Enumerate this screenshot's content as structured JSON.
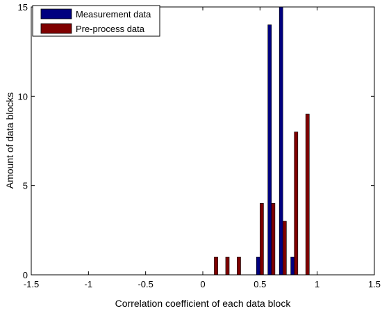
{
  "chart_data": {
    "type": "bar",
    "title": "",
    "xlabel": "Correlation coefficient of each data block",
    "ylabel": "Amount of data blocks",
    "xlim": [
      -1.5,
      1.5
    ],
    "ylim": [
      0,
      15
    ],
    "x_ticks": [
      -1.5,
      -1,
      -0.5,
      0,
      0.5,
      1,
      1.5
    ],
    "x_tick_labels": [
      "-1.5",
      "-1",
      "-0.5",
      "0",
      "0.5",
      "1",
      "1.5"
    ],
    "y_ticks": [
      0,
      5,
      10,
      15
    ],
    "y_tick_labels": [
      "0",
      "5",
      "10",
      "15"
    ],
    "grid": false,
    "legend_position": "top-left",
    "bin_centers": [
      0.1,
      0.2,
      0.3,
      0.4,
      0.5,
      0.6,
      0.7,
      0.8,
      0.9
    ],
    "series": [
      {
        "name": "Measurement data",
        "color": "#00007f",
        "values": [
          0,
          0,
          0,
          0,
          1,
          14,
          15,
          1,
          0
        ]
      },
      {
        "name": "Pre-process data",
        "color": "#7f0000",
        "values": [
          1,
          1,
          1,
          0,
          4,
          4,
          3,
          8,
          9
        ]
      }
    ]
  }
}
